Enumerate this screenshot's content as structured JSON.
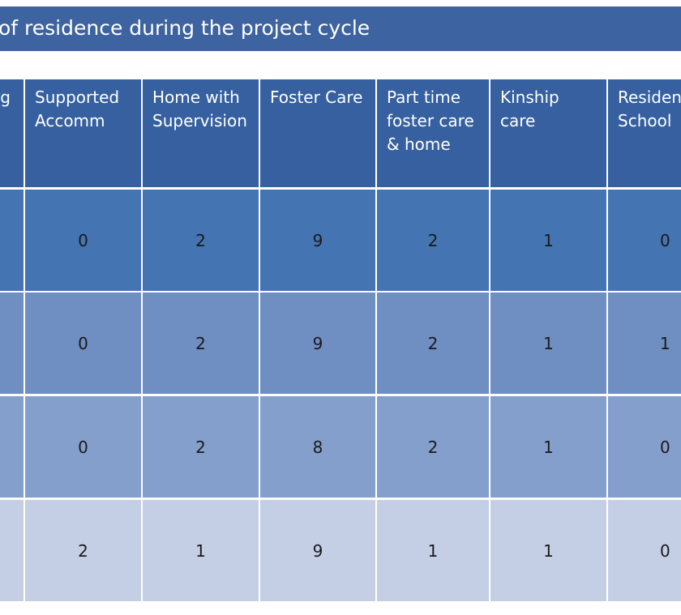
{
  "title": "of residence during the project cycle",
  "headers": [
    "g",
    "Supported\nAccomm",
    "Home with\nSupervision",
    "Foster Care",
    "Part time\nfoster care\n& home",
    "Kinship\ncare",
    "Residen\nSchool"
  ],
  "rows": [
    [
      "",
      "0",
      "2",
      "9",
      "2",
      "1",
      "0"
    ],
    [
      "",
      "0",
      "2",
      "9",
      "2",
      "1",
      "1"
    ],
    [
      "",
      "0",
      "2",
      "8",
      "2",
      "1",
      "0"
    ],
    [
      "",
      "2",
      "1",
      "9",
      "1",
      "1",
      "0"
    ]
  ],
  "colors": {
    "title_bg": "#3d63a0",
    "header_bg": "#36609f",
    "row_bgs": [
      "#4474b2",
      "#6f8ec1",
      "#849fcb",
      "#c4cfe5"
    ]
  }
}
